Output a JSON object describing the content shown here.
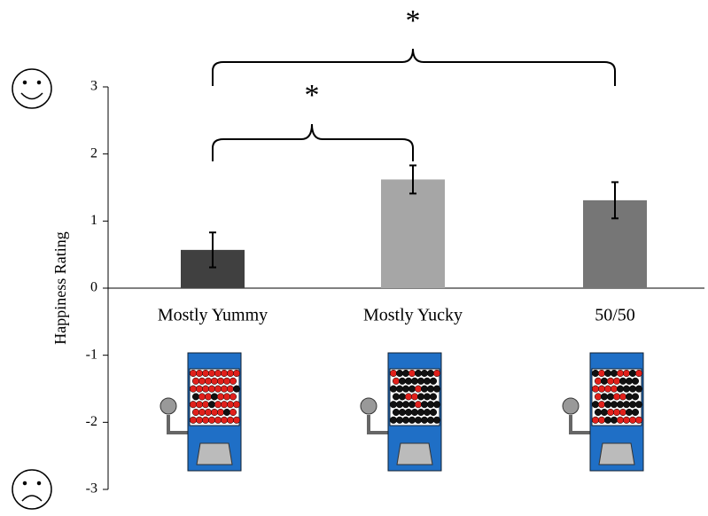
{
  "chart_data": {
    "type": "bar",
    "y_label": "Happiness Rating",
    "categories": [
      "Mostly Yummy",
      "Mostly Yucky",
      "50/50"
    ],
    "values": [
      0.57,
      1.62,
      1.31
    ],
    "errors": [
      0.26,
      0.21,
      0.27
    ],
    "colors": [
      "#404040",
      "#a6a6a6",
      "#767676"
    ],
    "ylim": [
      -3,
      3
    ],
    "yticks": [
      -3,
      -2,
      -1,
      0,
      1,
      2,
      3
    ],
    "annotations": [
      "*",
      "*"
    ]
  }
}
